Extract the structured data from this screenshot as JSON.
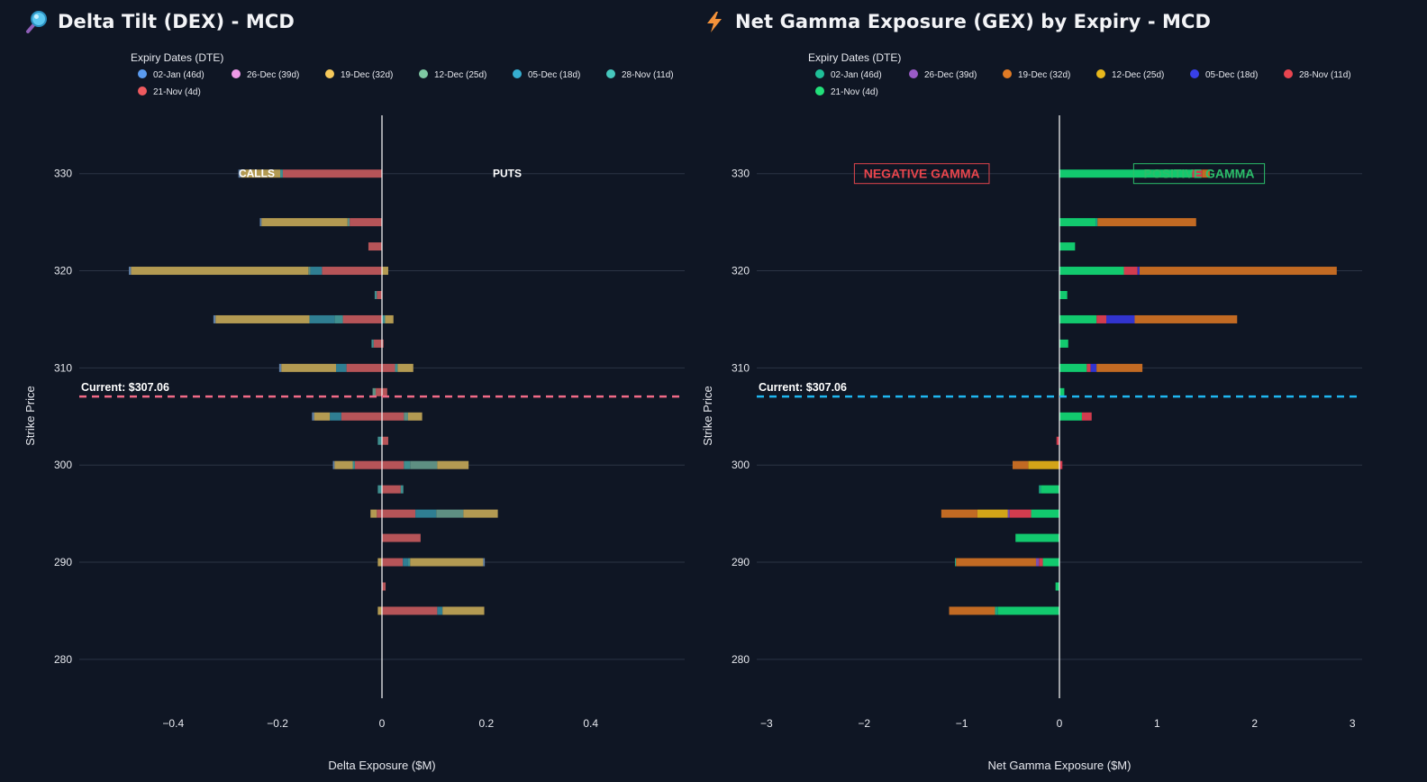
{
  "left": {
    "icon": "magnifier-icon",
    "title": "Delta Tilt (DEX) - MCD",
    "legend_title": "Expiry Dates (DTE)",
    "legend": [
      {
        "label": "02-Jan (46d)",
        "color": "#5b9cf0"
      },
      {
        "label": "26-Dec (39d)",
        "color": "#ef9ae8"
      },
      {
        "label": "19-Dec (32d)",
        "color": "#f6c95b"
      },
      {
        "label": "12-Dec (25d)",
        "color": "#7fc9a3"
      },
      {
        "label": "05-Dec (18d)",
        "color": "#36aed0"
      },
      {
        "label": "28-Nov (11d)",
        "color": "#46c7bd"
      },
      {
        "label": "21-Nov (4d)",
        "color": "#ee5a5f"
      }
    ],
    "bar_colors": {
      "02-Jan (46d)": "#5f7fa6",
      "26-Dec (39d)": "#b07fb0",
      "19-Dec (32d)": "#b39a52",
      "12-Dec (25d)": "#5e8f82",
      "05-Dec (18d)": "#2f7e92",
      "28-Nov (11d)": "#3f8f8f",
      "21-Nov (4d)": "#b65458"
    },
    "annotations": {
      "calls": "CALLS",
      "puts": "PUTS"
    },
    "current_label": "Current: $307.06",
    "current_color": "#f06a86",
    "xlabel": "Delta Exposure ($M)",
    "ylabel": "Strike Price"
  },
  "right": {
    "icon": "lightning-icon",
    "title": "Net Gamma Exposure (GEX) by Expiry - MCD",
    "legend_title": "Expiry Dates (DTE)",
    "legend": [
      {
        "label": "02-Jan (46d)",
        "color": "#1fbf98"
      },
      {
        "label": "26-Dec (39d)",
        "color": "#9a5bc8"
      },
      {
        "label": "19-Dec (32d)",
        "color": "#e07b25"
      },
      {
        "label": "12-Dec (25d)",
        "color": "#e8b81c"
      },
      {
        "label": "05-Dec (18d)",
        "color": "#3840e8"
      },
      {
        "label": "28-Nov (11d)",
        "color": "#e84550"
      },
      {
        "label": "21-Nov (4d)",
        "color": "#22e07a"
      }
    ],
    "bar_colors": {
      "02-Jan (46d)": "#1aa884",
      "26-Dec (39d)": "#7c4fae",
      "19-Dec (32d)": "#c26a23",
      "12-Dec (25d)": "#d2a418",
      "05-Dec (18d)": "#3234cf",
      "28-Nov (11d)": "#d23c4e",
      "21-Nov (4d)": "#12c96e"
    },
    "annotations": {
      "negative": "NEGATIVE GAMMA",
      "positive": "POSITIVE GAMMA"
    },
    "current_label": "Current: $307.06",
    "current_color": "#1fb6f0",
    "xlabel": "Net Gamma Exposure ($M)",
    "ylabel": "Strike Price"
  },
  "chart_data": [
    {
      "type": "bar",
      "orientation": "horizontal",
      "stacked": true,
      "title": "Delta Tilt (DEX) - MCD",
      "xlabel": "Delta Exposure ($M)",
      "ylabel": "Strike Price",
      "xlim": [
        -0.58,
        0.58
      ],
      "ylim": [
        276,
        336
      ],
      "xticks": [
        -0.4,
        -0.2,
        0,
        0.2,
        0.4
      ],
      "xtick_labels": [
        "−0.4",
        "−0.2",
        "0",
        "0.2",
        "0.4"
      ],
      "yticks": [
        280,
        290,
        300,
        310,
        320,
        330
      ],
      "current_price": 307.06,
      "bars": [
        {
          "strike": 330,
          "neg": [
            [
              "21-Nov (4d)",
              0.19
            ],
            [
              "28-Nov (11d)",
              0.005
            ],
            [
              "19-Dec (32d)",
              0.075
            ],
            [
              "02-Jan (46d)",
              0.005
            ]
          ],
          "pos": []
        },
        {
          "strike": 325,
          "neg": [
            [
              "21-Nov (4d)",
              0.062
            ],
            [
              "12-Dec (25d)",
              0.004
            ],
            [
              "19-Dec (32d)",
              0.165
            ],
            [
              "02-Jan (46d)",
              0.003
            ]
          ],
          "pos": []
        },
        {
          "strike": 322.5,
          "neg": [
            [
              "21-Nov (4d)",
              0.026
            ]
          ],
          "pos": []
        },
        {
          "strike": 320,
          "neg": [
            [
              "21-Nov (4d)",
              0.115
            ],
            [
              "05-Dec (18d)",
              0.022
            ],
            [
              "12-Dec (25d)",
              0.004
            ],
            [
              "19-Dec (32d)",
              0.34
            ],
            [
              "02-Jan (46d)",
              0.004
            ]
          ],
          "pos": [
            [
              "19-Dec (32d)",
              0.012
            ]
          ]
        },
        {
          "strike": 317.5,
          "neg": [
            [
              "21-Nov (4d)",
              0.01
            ],
            [
              "28-Nov (11d)",
              0.004
            ]
          ],
          "pos": []
        },
        {
          "strike": 315,
          "neg": [
            [
              "21-Nov (4d)",
              0.075
            ],
            [
              "28-Nov (11d)",
              0.016
            ],
            [
              "05-Dec (18d)",
              0.048
            ],
            [
              "19-Dec (32d)",
              0.18
            ],
            [
              "02-Jan (46d)",
              0.004
            ]
          ],
          "pos": [
            [
              "28-Nov (11d)",
              0.006
            ],
            [
              "19-Dec (32d)",
              0.016
            ]
          ]
        },
        {
          "strike": 312.5,
          "neg": [
            [
              "21-Nov (4d)",
              0.016
            ],
            [
              "28-Nov (11d)",
              0.004
            ]
          ],
          "pos": [
            [
              "21-Nov (4d)",
              0.003
            ]
          ]
        },
        {
          "strike": 310,
          "neg": [
            [
              "21-Nov (4d)",
              0.068
            ],
            [
              "05-Dec (18d)",
              0.02
            ],
            [
              "19-Dec (32d)",
              0.105
            ],
            [
              "02-Jan (46d)",
              0.004
            ]
          ],
          "pos": [
            [
              "21-Nov (4d)",
              0.025
            ],
            [
              "28-Nov (11d)",
              0.005
            ],
            [
              "19-Dec (32d)",
              0.03
            ]
          ]
        },
        {
          "strike": 307.5,
          "neg": [
            [
              "21-Nov (4d)",
              0.012
            ],
            [
              "12-Dec (25d)",
              0.006
            ]
          ],
          "pos": [
            [
              "21-Nov (4d)",
              0.01
            ]
          ]
        },
        {
          "strike": 305,
          "neg": [
            [
              "21-Nov (4d)",
              0.078
            ],
            [
              "05-Dec (18d)",
              0.022
            ],
            [
              "19-Dec (32d)",
              0.03
            ],
            [
              "02-Jan (46d)",
              0.004
            ]
          ],
          "pos": [
            [
              "21-Nov (4d)",
              0.042
            ],
            [
              "12-Dec (25d)",
              0.008
            ],
            [
              "19-Dec (32d)",
              0.027
            ]
          ]
        },
        {
          "strike": 302.5,
          "neg": [
            [
              "28-Nov (11d)",
              0.008
            ]
          ],
          "pos": [
            [
              "21-Nov (4d)",
              0.012
            ]
          ]
        },
        {
          "strike": 300,
          "neg": [
            [
              "21-Nov (4d)",
              0.052
            ],
            [
              "28-Nov (11d)",
              0.004
            ],
            [
              "19-Dec (32d)",
              0.035
            ],
            [
              "02-Jan (46d)",
              0.003
            ]
          ],
          "pos": [
            [
              "21-Nov (4d)",
              0.042
            ],
            [
              "28-Nov (11d)",
              0.012
            ],
            [
              "12-Dec (25d)",
              0.052
            ],
            [
              "19-Dec (32d)",
              0.06
            ]
          ]
        },
        {
          "strike": 297.5,
          "neg": [
            [
              "28-Nov (11d)",
              0.008
            ]
          ],
          "pos": [
            [
              "21-Nov (4d)",
              0.036
            ],
            [
              "28-Nov (11d)",
              0.005
            ]
          ]
        },
        {
          "strike": 295,
          "neg": [
            [
              "21-Nov (4d)",
              0.01
            ],
            [
              "19-Dec (32d)",
              0.012
            ]
          ],
          "pos": [
            [
              "21-Nov (4d)",
              0.064
            ],
            [
              "05-Dec (18d)",
              0.04
            ],
            [
              "12-Dec (25d)",
              0.052
            ],
            [
              "19-Dec (32d)",
              0.066
            ]
          ]
        },
        {
          "strike": 292.5,
          "neg": [],
          "pos": [
            [
              "21-Nov (4d)",
              0.074
            ]
          ]
        },
        {
          "strike": 290,
          "neg": [
            [
              "19-Dec (32d)",
              0.008
            ]
          ],
          "pos": [
            [
              "21-Nov (4d)",
              0.04
            ],
            [
              "05-Dec (18d)",
              0.01
            ],
            [
              "28-Nov (11d)",
              0.004
            ],
            [
              "19-Dec (32d)",
              0.14
            ],
            [
              "02-Jan (46d)",
              0.003
            ]
          ]
        },
        {
          "strike": 287.5,
          "neg": [],
          "pos": [
            [
              "21-Nov (4d)",
              0.007
            ]
          ]
        },
        {
          "strike": 285,
          "neg": [
            [
              "19-Dec (32d)",
              0.008
            ]
          ],
          "pos": [
            [
              "21-Nov (4d)",
              0.106
            ],
            [
              "05-Dec (18d)",
              0.01
            ],
            [
              "19-Dec (32d)",
              0.08
            ]
          ]
        }
      ]
    },
    {
      "type": "bar",
      "orientation": "horizontal",
      "stacked": true,
      "title": "Net Gamma Exposure (GEX) by Expiry - MCD",
      "xlabel": "Net Gamma Exposure ($M)",
      "ylabel": "Strike Price",
      "xlim": [
        -3.1,
        3.1
      ],
      "ylim": [
        276,
        336
      ],
      "xticks": [
        -3,
        -2,
        -1,
        0,
        1,
        2,
        3
      ],
      "xtick_labels": [
        "−3",
        "−2",
        "−1",
        "0",
        "1",
        "2",
        "3"
      ],
      "yticks": [
        280,
        290,
        300,
        310,
        320,
        330
      ],
      "current_price": 307.06,
      "bars": [
        {
          "strike": 330,
          "neg": [],
          "pos": [
            [
              "21-Nov (4d)",
              1.36
            ],
            [
              "28-Nov (11d)",
              0.1
            ],
            [
              "19-Dec (32d)",
              0.08
            ]
          ]
        },
        {
          "strike": 325,
          "neg": [],
          "pos": [
            [
              "21-Nov (4d)",
              0.37
            ],
            [
              "02-Jan (46d)",
              0.02
            ],
            [
              "19-Dec (32d)",
              1.01
            ]
          ]
        },
        {
          "strike": 322.5,
          "neg": [],
          "pos": [
            [
              "21-Nov (4d)",
              0.16
            ]
          ]
        },
        {
          "strike": 320,
          "neg": [],
          "pos": [
            [
              "21-Nov (4d)",
              0.66
            ],
            [
              "28-Nov (11d)",
              0.14
            ],
            [
              "05-Dec (18d)",
              0.02
            ],
            [
              "19-Dec (32d)",
              2.02
            ]
          ]
        },
        {
          "strike": 317.5,
          "neg": [],
          "pos": [
            [
              "21-Nov (4d)",
              0.08
            ]
          ]
        },
        {
          "strike": 315,
          "neg": [],
          "pos": [
            [
              "21-Nov (4d)",
              0.38
            ],
            [
              "28-Nov (11d)",
              0.1
            ],
            [
              "05-Dec (18d)",
              0.29
            ],
            [
              "19-Dec (32d)",
              1.05
            ]
          ]
        },
        {
          "strike": 312.5,
          "neg": [],
          "pos": [
            [
              "21-Nov (4d)",
              0.09
            ]
          ]
        },
        {
          "strike": 310,
          "neg": [],
          "pos": [
            [
              "21-Nov (4d)",
              0.28
            ],
            [
              "28-Nov (11d)",
              0.04
            ],
            [
              "05-Dec (18d)",
              0.06
            ],
            [
              "19-Dec (32d)",
              0.47
            ]
          ]
        },
        {
          "strike": 307.5,
          "neg": [],
          "pos": [
            [
              "21-Nov (4d)",
              0.05
            ]
          ]
        },
        {
          "strike": 305,
          "neg": [],
          "pos": [
            [
              "21-Nov (4d)",
              0.23
            ],
            [
              "28-Nov (11d)",
              0.1
            ]
          ]
        },
        {
          "strike": 302.5,
          "neg": [
            [
              "28-Nov (11d)",
              0.03
            ]
          ],
          "pos": []
        },
        {
          "strike": 300,
          "neg": [
            [
              "12-Dec (25d)",
              0.32
            ],
            [
              "19-Dec (32d)",
              0.16
            ]
          ],
          "pos": [
            [
              "28-Nov (11d)",
              0.03
            ]
          ]
        },
        {
          "strike": 297.5,
          "neg": [
            [
              "21-Nov (4d)",
              0.19
            ],
            [
              "02-Jan (46d)",
              0.02
            ]
          ],
          "pos": []
        },
        {
          "strike": 295,
          "neg": [
            [
              "21-Nov (4d)",
              0.29
            ],
            [
              "28-Nov (11d)",
              0.22
            ],
            [
              "26-Dec (39d)",
              0.02
            ],
            [
              "12-Dec (25d)",
              0.31
            ],
            [
              "19-Dec (32d)",
              0.37
            ]
          ],
          "pos": []
        },
        {
          "strike": 292.5,
          "neg": [
            [
              "21-Nov (4d)",
              0.45
            ]
          ],
          "pos": []
        },
        {
          "strike": 290,
          "neg": [
            [
              "21-Nov (4d)",
              0.17
            ],
            [
              "28-Nov (11d)",
              0.04
            ],
            [
              "26-Dec (39d)",
              0.03
            ],
            [
              "19-Dec (32d)",
              0.82
            ],
            [
              "02-Jan (46d)",
              0.01
            ]
          ],
          "pos": []
        },
        {
          "strike": 287.5,
          "neg": [
            [
              "21-Nov (4d)",
              0.04
            ]
          ],
          "pos": []
        },
        {
          "strike": 285,
          "neg": [
            [
              "21-Nov (4d)",
              0.63
            ],
            [
              "02-Jan (46d)",
              0.03
            ],
            [
              "19-Dec (32d)",
              0.47
            ]
          ],
          "pos": []
        }
      ]
    }
  ]
}
